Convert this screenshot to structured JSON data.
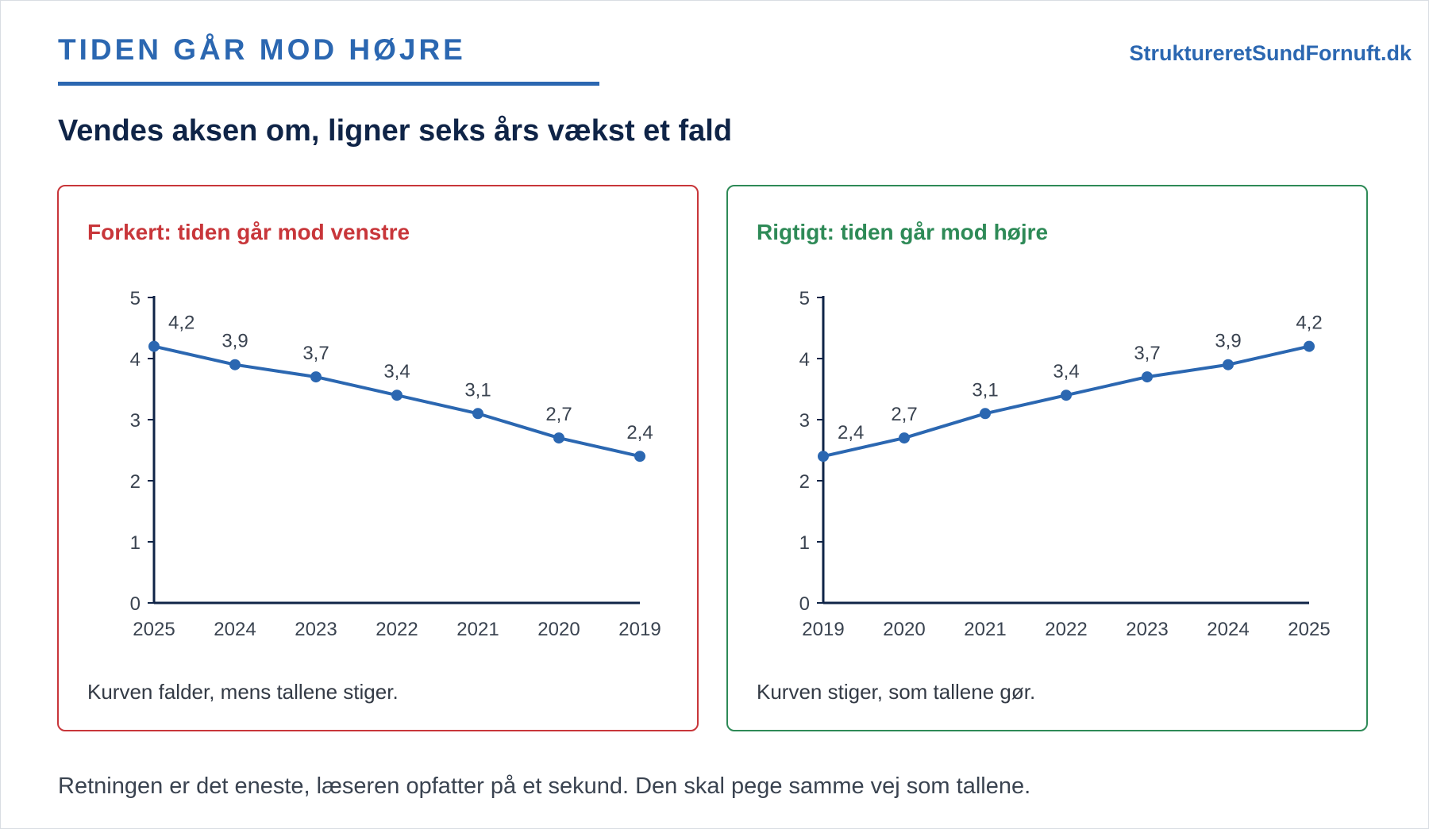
{
  "header": {
    "kicker": "TIDEN GÅR MOD HØJRE",
    "site": "StruktureretSundFornuft.dk",
    "headline": "Vendes aksen om, ligner seks års vækst et fald"
  },
  "panels": [
    {
      "title": "Forkert: tiden går mod venstre",
      "note": "Kurven falder, mens tallene stiger."
    },
    {
      "title": "Rigtigt: tiden går mod højre",
      "note": "Kurven stiger, som tallene gør."
    }
  ],
  "footer": {
    "text": "Retningen er det eneste, læseren opfatter på et sekund. Den skal pege samme vej som tallene."
  },
  "colors": {
    "accent": "#2b67b1",
    "wrong": "#c8363a",
    "right": "#2e8a57",
    "line": "#2b67b1",
    "axis": "#0f2447"
  },
  "chart_data": [
    {
      "type": "line",
      "x": [
        "2025",
        "2024",
        "2023",
        "2022",
        "2021",
        "2020",
        "2019"
      ],
      "values": [
        4.2,
        3.9,
        3.7,
        3.4,
        3.1,
        2.7,
        2.4
      ],
      "data_labels": [
        "4,2",
        "3,9",
        "3,7",
        "3,4",
        "3,1",
        "2,7",
        "2,4"
      ],
      "yticks": [
        0,
        1,
        2,
        3,
        4,
        5
      ],
      "ylim": [
        0,
        5
      ],
      "grid": false,
      "legend": "none"
    },
    {
      "type": "line",
      "x": [
        "2019",
        "2020",
        "2021",
        "2022",
        "2023",
        "2024",
        "2025"
      ],
      "values": [
        2.4,
        2.7,
        3.1,
        3.4,
        3.7,
        3.9,
        4.2
      ],
      "data_labels": [
        "2,4",
        "2,7",
        "3,1",
        "3,4",
        "3,7",
        "3,9",
        "4,2"
      ],
      "yticks": [
        0,
        1,
        2,
        3,
        4,
        5
      ],
      "ylim": [
        0,
        5
      ],
      "grid": false,
      "legend": "none"
    }
  ]
}
